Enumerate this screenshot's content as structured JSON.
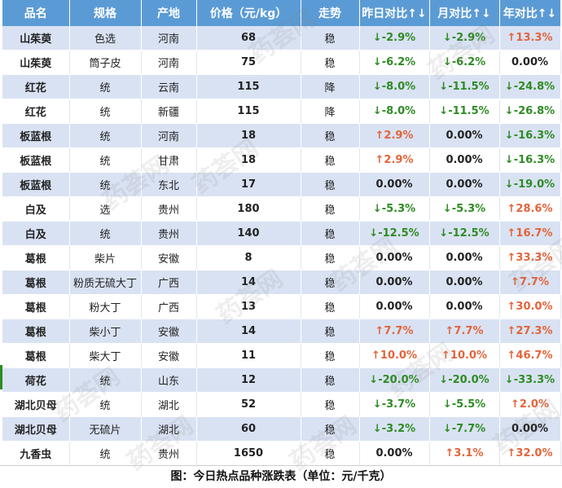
{
  "headers": [
    "品名",
    "规格",
    "产地",
    "价格（元/kg）",
    "走势",
    "昨日对比↑↓",
    "月对比↑↓",
    "年对比↑↓"
  ],
  "rows": [
    {
      "name": "山茱萸",
      "spec": "色选",
      "origin": "河南",
      "price": "68",
      "trend": "稳",
      "day": "↓-2.9%",
      "day_dir": "down",
      "month": "↓-2.9%",
      "month_dir": "down",
      "year": "↑13.3%",
      "year_dir": "up"
    },
    {
      "name": "山茱萸",
      "spec": "筒子皮",
      "origin": "河南",
      "price": "75",
      "trend": "稳",
      "day": "↓-6.2%",
      "day_dir": "down",
      "month": "↓-6.2%",
      "month_dir": "down",
      "year": "0.00%",
      "year_dir": "flat"
    },
    {
      "name": "红花",
      "spec": "统",
      "origin": "云南",
      "price": "115",
      "trend": "降",
      "day": "↓-8.0%",
      "day_dir": "down",
      "month": "↓-11.5%",
      "month_dir": "down",
      "year": "↓-24.8%",
      "year_dir": "down"
    },
    {
      "name": "红花",
      "spec": "统",
      "origin": "新疆",
      "price": "115",
      "trend": "降",
      "day": "↓-8.0%",
      "day_dir": "down",
      "month": "↓-11.5%",
      "month_dir": "down",
      "year": "↓-26.8%",
      "year_dir": "down"
    },
    {
      "name": "板蓝根",
      "spec": "统",
      "origin": "河南",
      "price": "18",
      "trend": "稳",
      "day": "↑2.9%",
      "day_dir": "up",
      "month": "0.00%",
      "month_dir": "flat",
      "year": "↓-16.3%",
      "year_dir": "down"
    },
    {
      "name": "板蓝根",
      "spec": "统",
      "origin": "甘肃",
      "price": "18",
      "trend": "稳",
      "day": "↑2.9%",
      "day_dir": "up",
      "month": "0.00%",
      "month_dir": "flat",
      "year": "↓-16.3%",
      "year_dir": "down"
    },
    {
      "name": "板蓝根",
      "spec": "统",
      "origin": "东北",
      "price": "17",
      "trend": "稳",
      "day": "0.00%",
      "day_dir": "flat",
      "month": "0.00%",
      "month_dir": "flat",
      "year": "↓-19.0%",
      "year_dir": "down"
    },
    {
      "name": "白及",
      "spec": "选",
      "origin": "贵州",
      "price": "180",
      "trend": "稳",
      "day": "↓-5.3%",
      "day_dir": "down",
      "month": "↓-5.3%",
      "month_dir": "down",
      "year": "↑28.6%",
      "year_dir": "up"
    },
    {
      "name": "白及",
      "spec": "统",
      "origin": "贵州",
      "price": "140",
      "trend": "稳",
      "day": "↓-12.5%",
      "day_dir": "down",
      "month": "↓-12.5%",
      "month_dir": "down",
      "year": "↑16.7%",
      "year_dir": "up"
    },
    {
      "name": "葛根",
      "spec": "柴片",
      "origin": "安徽",
      "price": "8",
      "trend": "稳",
      "day": "0.00%",
      "day_dir": "flat",
      "month": "0.00%",
      "month_dir": "flat",
      "year": "↑33.3%",
      "year_dir": "up"
    },
    {
      "name": "葛根",
      "spec": "粉质无硫大丁",
      "origin": "广西",
      "price": "14",
      "trend": "稳",
      "day": "0.00%",
      "day_dir": "flat",
      "month": "0.00%",
      "month_dir": "flat",
      "year": "↑7.7%",
      "year_dir": "up"
    },
    {
      "name": "葛根",
      "spec": "粉大丁",
      "origin": "广西",
      "price": "13",
      "trend": "稳",
      "day": "0.00%",
      "day_dir": "flat",
      "month": "0.00%",
      "month_dir": "flat",
      "year": "↑30.0%",
      "year_dir": "up"
    },
    {
      "name": "葛根",
      "spec": "柴小丁",
      "origin": "安徽",
      "price": "14",
      "trend": "稳",
      "day": "↑7.7%",
      "day_dir": "up",
      "month": "↑7.7%",
      "month_dir": "up",
      "year": "↑27.3%",
      "year_dir": "up"
    },
    {
      "name": "葛根",
      "spec": "柴大丁",
      "origin": "安徽",
      "price": "11",
      "trend": "稳",
      "day": "↑10.0%",
      "day_dir": "up",
      "month": "↑10.0%",
      "month_dir": "up",
      "year": "↑46.7%",
      "year_dir": "up"
    },
    {
      "name": "荷花",
      "spec": "统",
      "origin": "山东",
      "price": "12",
      "trend": "稳",
      "day": "↓-20.0%",
      "day_dir": "down",
      "month": "↓-20.0%",
      "month_dir": "down",
      "year": "↓-33.3%",
      "year_dir": "down"
    },
    {
      "name": "湖北贝母",
      "spec": "统",
      "origin": "湖北",
      "price": "52",
      "trend": "稳",
      "day": "↓-3.7%",
      "day_dir": "down",
      "month": "↓-5.5%",
      "month_dir": "down",
      "year": "↑2.0%",
      "year_dir": "up"
    },
    {
      "name": "湖北贝母",
      "spec": "无硫片",
      "origin": "湖北",
      "price": "60",
      "trend": "稳",
      "day": "↓-3.2%",
      "day_dir": "down",
      "month": "↓-7.7%",
      "month_dir": "down",
      "year": "0.00%",
      "year_dir": "flat"
    },
    {
      "name": "九香虫",
      "spec": "统",
      "origin": "贵州",
      "price": "1650",
      "trend": "稳",
      "day": "0.00%",
      "day_dir": "flat",
      "month": "↑3.1%",
      "month_dir": "up",
      "year": "↑32.0%",
      "year_dir": "up"
    }
  ],
  "caption": "图：今日热点品种涨跌表（单位：元/千克）",
  "watermark": "药荟网",
  "colors": {
    "header_bg": "#5b9bd5",
    "row_alt_bg": "#d9e2f3",
    "down": "#2e8b23",
    "up": "#e3643a"
  }
}
